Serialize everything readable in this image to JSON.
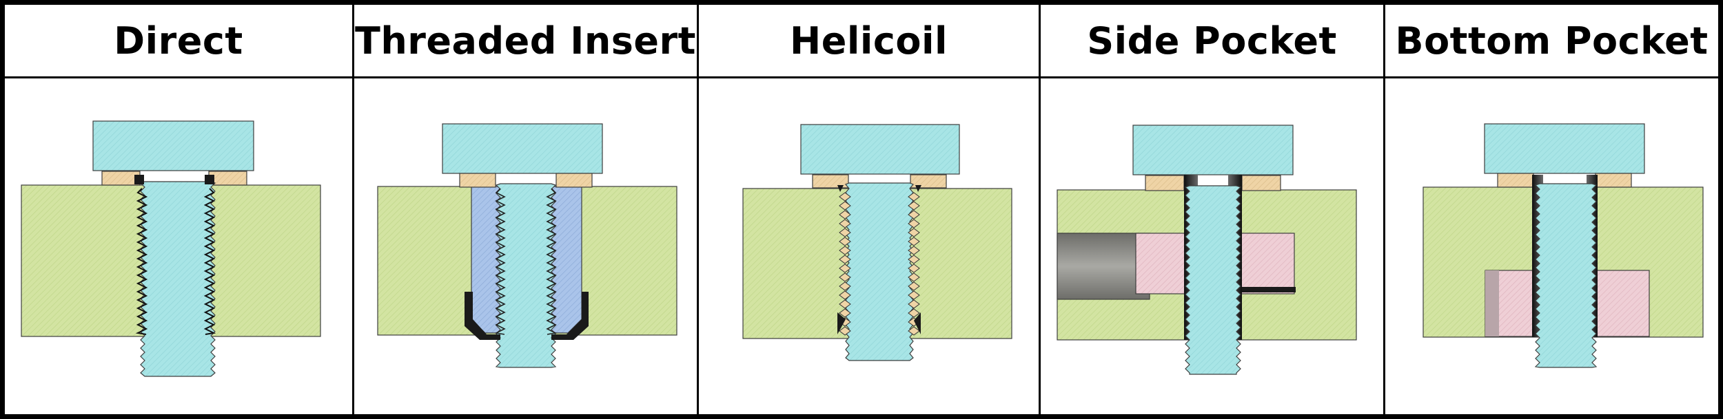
{
  "panels": [
    {
      "id": "direct",
      "title": "Direct",
      "parts": [
        "bolt-head",
        "washer",
        "washer",
        "screw-shank",
        "base-plate"
      ]
    },
    {
      "id": "threaded-insert",
      "title": "Threaded Insert",
      "parts": [
        "bolt-head",
        "washer",
        "washer",
        "screw-shank",
        "threaded-insert",
        "base-plate"
      ]
    },
    {
      "id": "helicoil",
      "title": "Helicoil",
      "parts": [
        "bolt-head",
        "washer",
        "washer",
        "screw-shank",
        "helicoil-coils",
        "base-plate"
      ]
    },
    {
      "id": "side-pocket",
      "title": "Side Pocket",
      "parts": [
        "bolt-head",
        "washer",
        "washer",
        "screw-shank",
        "nut",
        "side-pocket-slot",
        "base-plate"
      ]
    },
    {
      "id": "bottom-pocket",
      "title": "Bottom Pocket",
      "parts": [
        "bolt-head",
        "washer",
        "washer",
        "screw-shank",
        "nut",
        "base-plate"
      ]
    }
  ],
  "colors": {
    "plate": "#d3e4a2",
    "bolt": "#a8e5e6",
    "washer": "#efd4a6",
    "insert": "#aac4ea",
    "nut": "#efcfd6",
    "slot": "#8a8a86",
    "outline": "#3d3d3d",
    "dark_thread": "#1a1a1a"
  }
}
